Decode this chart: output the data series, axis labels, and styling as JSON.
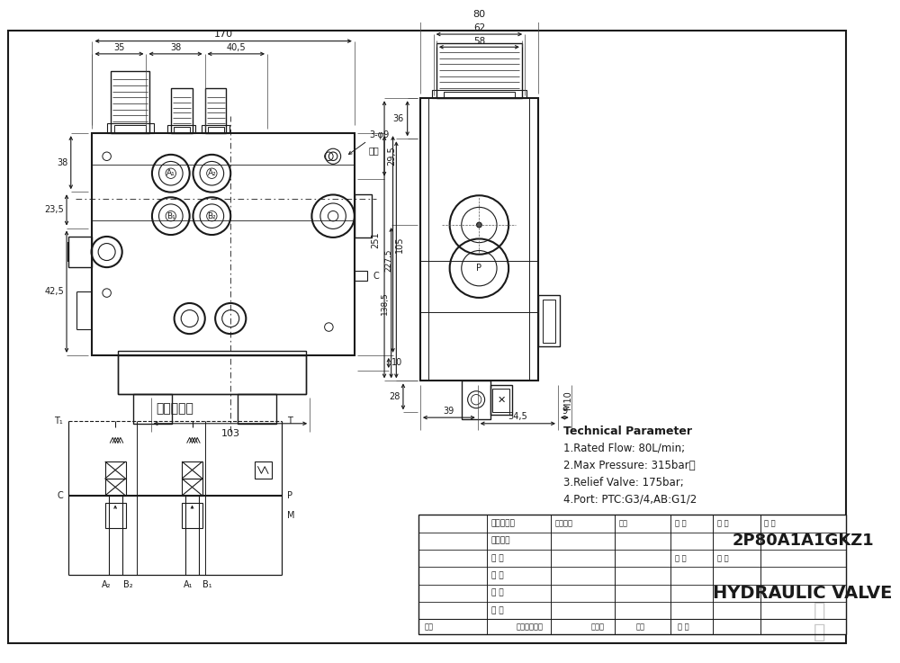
{
  "bg_color": "#ffffff",
  "line_color": "#1a1a1a",
  "tech_params": [
    "Technical Parameter",
    "1.Rated Flow: 80L/min;",
    "2.Max Pressure: 315bar，",
    "3.Relief Valve: 175bar;",
    "4.Port: PTC:G3/4,AB:G1/2"
  ],
  "model_number": "2P80A1A1GKZ1",
  "valve_name": "HYDRAULIC VALVE",
  "chinese_label": "液压原理图",
  "note_3phi9": "3-φ9",
  "note_tukon": "透孔",
  "row_labels": [
    "设 计",
    "制 图",
    "描 图",
    "校 对",
    "工艺检查",
    "标准化检查"
  ],
  "bot_labels": [
    "标记",
    "更改内容描述",
    "更改人",
    "日期",
    "章 核"
  ],
  "header_labels": [
    "图样标记",
    "重量",
    "比 例",
    "年 级",
    "年 级"
  ]
}
